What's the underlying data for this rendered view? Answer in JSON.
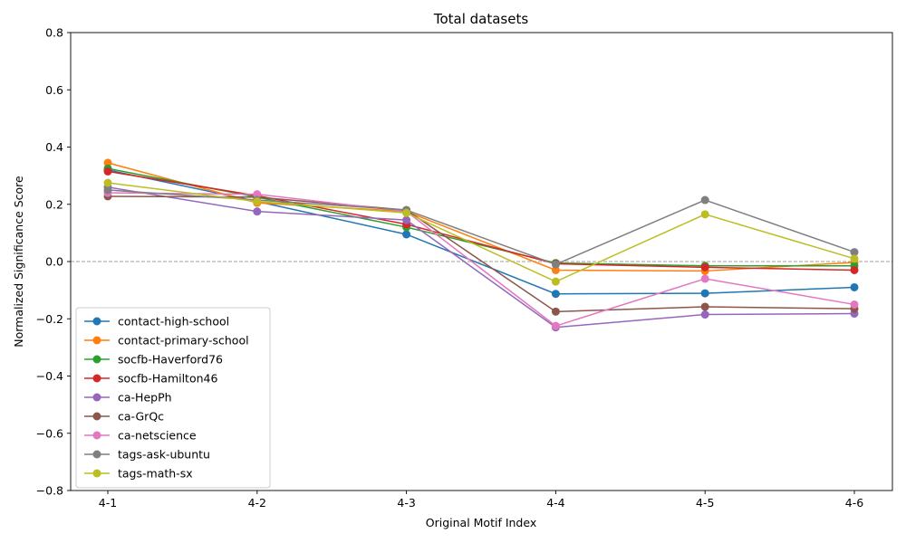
{
  "chart_data": {
    "type": "line",
    "title": "Total datasets",
    "xlabel": "Original Motif Index",
    "ylabel": "Normalized Significance Score",
    "categories": [
      "4-1",
      "4-2",
      "4-3",
      "4-4",
      "4-5",
      "4-6"
    ],
    "ylim": [
      -0.8,
      0.8
    ],
    "yticks": [
      -0.8,
      -0.6,
      -0.4,
      -0.2,
      0.0,
      0.2,
      0.4,
      0.6,
      0.8
    ],
    "ytick_labels": [
      "−0.8",
      "−0.6",
      "−0.4",
      "−0.2",
      "0.0",
      "0.2",
      "0.4",
      "0.6",
      "0.8"
    ],
    "grid": false,
    "reference_line": 0.0,
    "legend_position": "lower-left",
    "series": [
      {
        "name": "contact-high-school",
        "color": "#1f77b4",
        "values": [
          0.32,
          0.21,
          0.095,
          -0.113,
          -0.111,
          -0.09
        ]
      },
      {
        "name": "contact-primary-school",
        "color": "#ff7f0e",
        "values": [
          0.345,
          0.205,
          0.175,
          -0.03,
          -0.033,
          -0.003
        ]
      },
      {
        "name": "socfb-Haverford76",
        "color": "#2ca02c",
        "values": [
          0.325,
          0.225,
          0.12,
          -0.005,
          -0.015,
          -0.015
        ]
      },
      {
        "name": "socfb-Hamilton46",
        "color": "#d62728",
        "values": [
          0.315,
          0.23,
          0.13,
          -0.008,
          -0.02,
          -0.03
        ]
      },
      {
        "name": "ca-HepPh",
        "color": "#9467bd",
        "values": [
          0.26,
          0.175,
          0.145,
          -0.23,
          -0.185,
          -0.182
        ]
      },
      {
        "name": "ca-GrQc",
        "color": "#8c564b",
        "values": [
          0.228,
          0.225,
          0.18,
          -0.175,
          -0.158,
          -0.165
        ]
      },
      {
        "name": "ca-netscience",
        "color": "#e377c2",
        "values": [
          0.24,
          0.235,
          0.175,
          -0.225,
          -0.06,
          -0.15
        ]
      },
      {
        "name": "tags-ask-ubuntu",
        "color": "#7f7f7f",
        "values": [
          0.25,
          0.215,
          0.18,
          -0.01,
          0.215,
          0.033
        ]
      },
      {
        "name": "tags-math-sx",
        "color": "#bcbd22",
        "values": [
          0.275,
          0.21,
          0.17,
          -0.07,
          0.165,
          0.01
        ]
      }
    ]
  }
}
